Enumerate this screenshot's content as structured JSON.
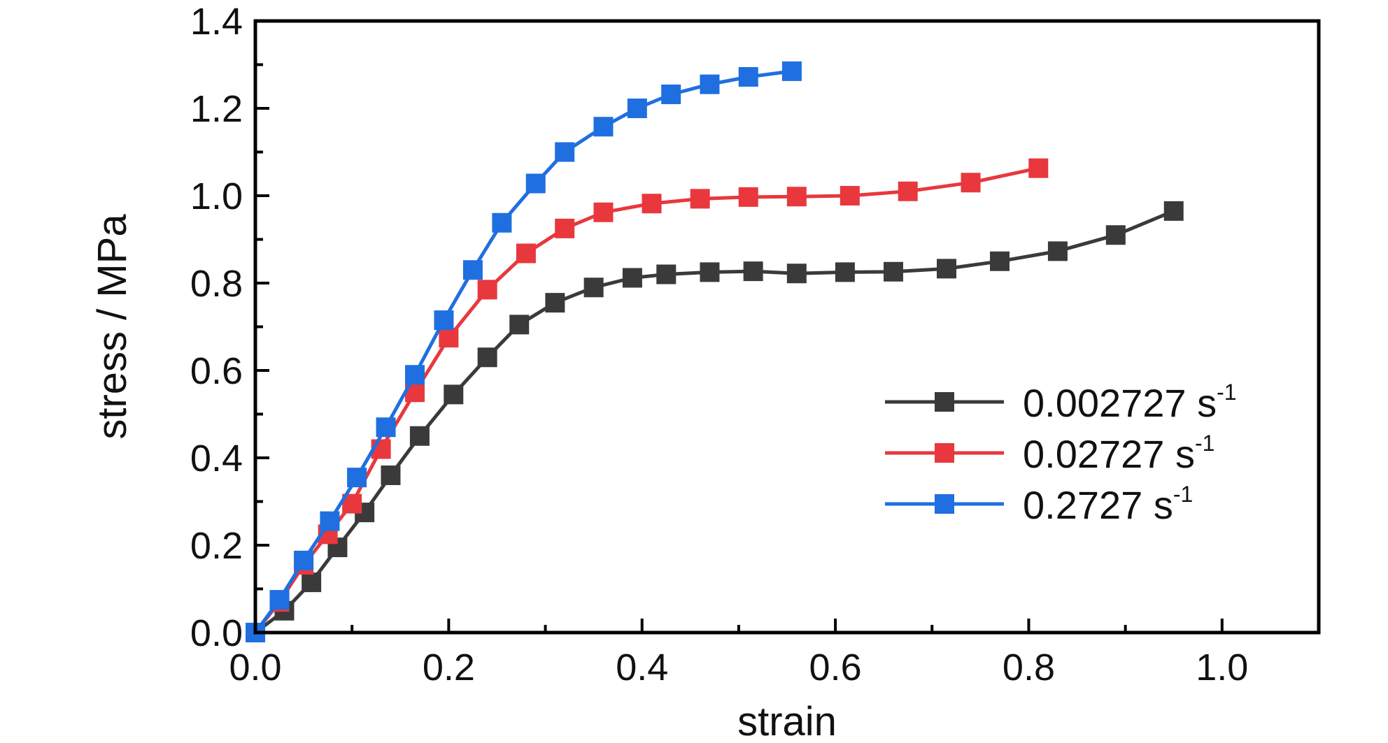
{
  "chart_data": {
    "type": "line",
    "xlabel": "strain",
    "ylabel": "stress / MPa",
    "xlim": [
      0.0,
      1.1
    ],
    "ylim": [
      0.0,
      1.4
    ],
    "x_ticks": [
      "0.0",
      "0.2",
      "0.4",
      "0.6",
      "0.8",
      "1.0"
    ],
    "y_ticks": [
      "0.0",
      "0.2",
      "0.4",
      "0.6",
      "0.8",
      "1.0",
      "1.2",
      "1.4"
    ],
    "grid": false,
    "legend_position": "right",
    "series": [
      {
        "name": "0.002727 s",
        "superscript": "-1",
        "color": "#3a3a3a",
        "points": [
          [
            0.0,
            0.0
          ],
          [
            0.03,
            0.05
          ],
          [
            0.058,
            0.115
          ],
          [
            0.085,
            0.195
          ],
          [
            0.113,
            0.275
          ],
          [
            0.14,
            0.36
          ],
          [
            0.17,
            0.45
          ],
          [
            0.205,
            0.545
          ],
          [
            0.24,
            0.63
          ],
          [
            0.273,
            0.705
          ],
          [
            0.31,
            0.755
          ],
          [
            0.35,
            0.79
          ],
          [
            0.39,
            0.812
          ],
          [
            0.425,
            0.82
          ],
          [
            0.47,
            0.825
          ],
          [
            0.515,
            0.827
          ],
          [
            0.56,
            0.822
          ],
          [
            0.61,
            0.825
          ],
          [
            0.66,
            0.826
          ],
          [
            0.715,
            0.833
          ],
          [
            0.77,
            0.85
          ],
          [
            0.83,
            0.873
          ],
          [
            0.89,
            0.91
          ],
          [
            0.95,
            0.965
          ]
        ]
      },
      {
        "name": "0.02727 s",
        "superscript": "-1",
        "color": "#e8383d",
        "points": [
          [
            0.0,
            0.0
          ],
          [
            0.025,
            0.07
          ],
          [
            0.05,
            0.155
          ],
          [
            0.075,
            0.225
          ],
          [
            0.1,
            0.295
          ],
          [
            0.13,
            0.42
          ],
          [
            0.165,
            0.55
          ],
          [
            0.2,
            0.675
          ],
          [
            0.24,
            0.785
          ],
          [
            0.28,
            0.868
          ],
          [
            0.32,
            0.925
          ],
          [
            0.36,
            0.962
          ],
          [
            0.41,
            0.982
          ],
          [
            0.46,
            0.993
          ],
          [
            0.51,
            0.997
          ],
          [
            0.56,
            0.998
          ],
          [
            0.615,
            1.0
          ],
          [
            0.675,
            1.01
          ],
          [
            0.74,
            1.03
          ],
          [
            0.81,
            1.063
          ]
        ]
      },
      {
        "name": "0.2727 s",
        "superscript": "-1",
        "color": "#1f6fe0",
        "points": [
          [
            0.0,
            0.0
          ],
          [
            0.025,
            0.075
          ],
          [
            0.05,
            0.165
          ],
          [
            0.077,
            0.255
          ],
          [
            0.105,
            0.355
          ],
          [
            0.135,
            0.47
          ],
          [
            0.165,
            0.59
          ],
          [
            0.195,
            0.715
          ],
          [
            0.225,
            0.83
          ],
          [
            0.255,
            0.938
          ],
          [
            0.29,
            1.028
          ],
          [
            0.32,
            1.1
          ],
          [
            0.36,
            1.158
          ],
          [
            0.395,
            1.2
          ],
          [
            0.43,
            1.232
          ],
          [
            0.47,
            1.255
          ],
          [
            0.51,
            1.272
          ],
          [
            0.555,
            1.285
          ]
        ]
      }
    ]
  }
}
